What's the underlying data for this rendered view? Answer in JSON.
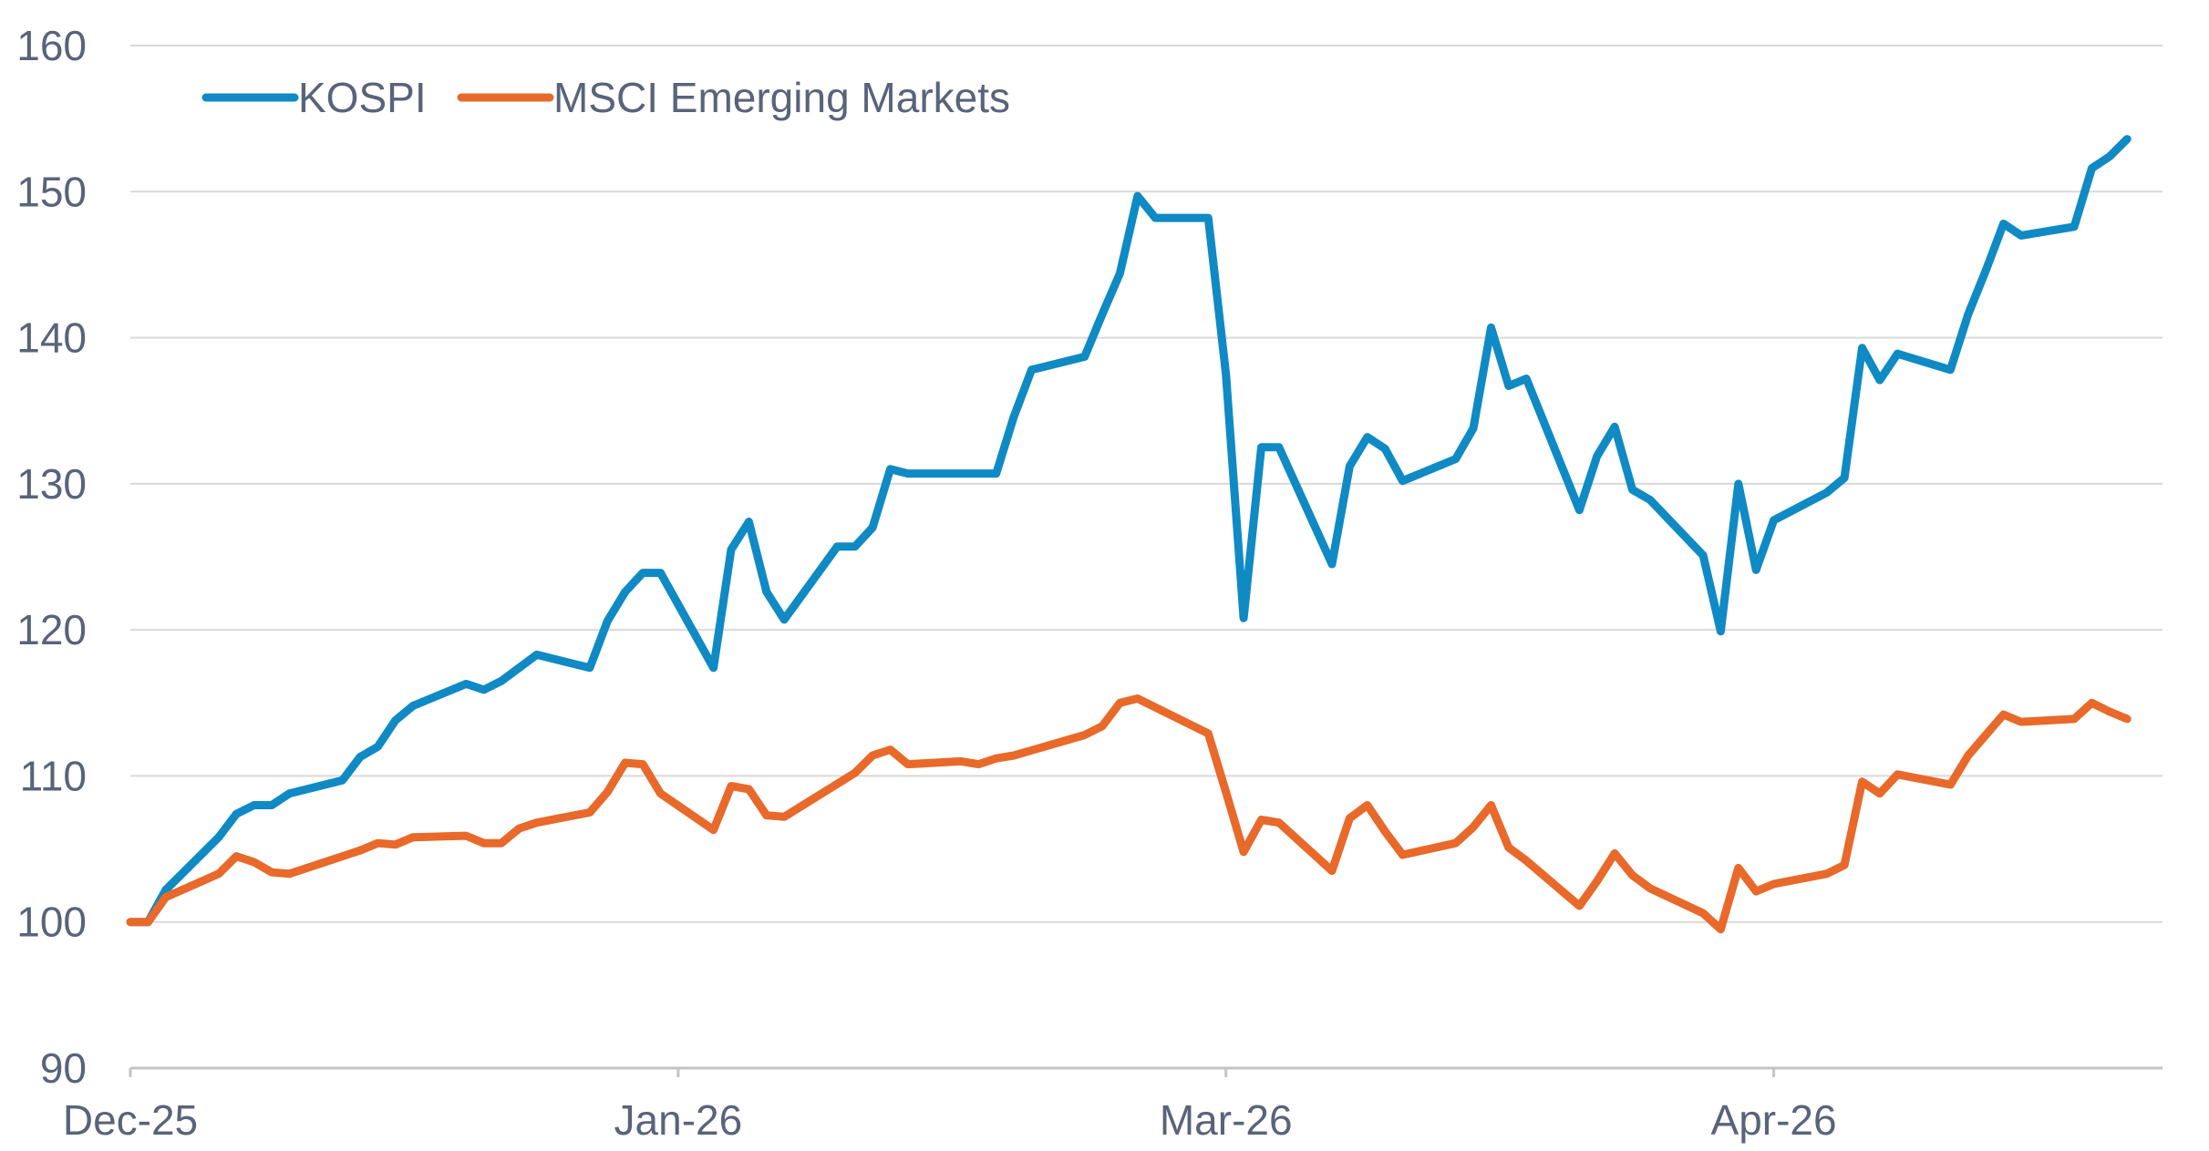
{
  "chart_data": {
    "type": "line",
    "title": "",
    "xlabel": "",
    "ylabel": "",
    "ylim": [
      90,
      160
    ],
    "yticks": [
      90,
      100,
      110,
      120,
      130,
      140,
      150,
      160
    ],
    "xticks": [
      "Dec-25",
      "Jan-26",
      "Mar-26",
      "Apr-26"
    ],
    "grid": true,
    "legend_position": "top-left",
    "colors": {
      "KOSPI": "#0f8ac4",
      "MSCI Emerging Markets": "#e8692a",
      "grid": "#d9d9d9",
      "axis": "#c4c4c4",
      "text": "#59637a"
    },
    "x_range": [
      0,
      115
    ],
    "xtick_positions": [
      0,
      31,
      62,
      93
    ],
    "series": [
      {
        "name": "KOSPI",
        "points": [
          [
            0,
            100
          ],
          [
            1,
            100
          ],
          [
            2,
            102.2
          ],
          [
            5,
            105.8
          ],
          [
            6,
            107.4
          ],
          [
            7,
            108
          ],
          [
            8,
            108
          ],
          [
            9,
            108.8
          ],
          [
            12,
            109.7
          ],
          [
            13,
            111.3
          ],
          [
            14,
            112
          ],
          [
            15,
            113.8
          ],
          [
            16,
            114.8
          ],
          [
            19,
            116.3
          ],
          [
            20,
            115.9
          ],
          [
            21,
            116.5
          ],
          [
            23,
            118.3
          ],
          [
            26,
            117.4
          ],
          [
            27,
            120.6
          ],
          [
            28,
            122.6
          ],
          [
            29,
            123.9
          ],
          [
            30,
            123.9
          ],
          [
            33,
            117.4
          ],
          [
            34,
            125.5
          ],
          [
            35,
            127.4
          ],
          [
            36,
            122.6
          ],
          [
            37,
            120.7
          ],
          [
            40,
            125.7
          ],
          [
            41,
            125.7
          ],
          [
            42,
            127
          ],
          [
            43,
            131
          ],
          [
            44,
            130.7
          ],
          [
            49,
            130.7
          ],
          [
            50,
            134.6
          ],
          [
            51,
            137.8
          ],
          [
            54,
            138.7
          ],
          [
            55,
            141.6
          ],
          [
            56,
            144.4
          ],
          [
            57,
            149.7
          ],
          [
            58,
            148.2
          ],
          [
            61,
            148.2
          ],
          [
            62,
            137.5
          ],
          [
            63,
            120.8
          ],
          [
            64,
            132.5
          ],
          [
            65,
            132.5
          ],
          [
            68,
            124.5
          ],
          [
            69,
            131.2
          ],
          [
            70,
            133.2
          ],
          [
            71,
            132.4
          ],
          [
            72,
            130.2
          ],
          [
            75,
            131.7
          ],
          [
            76,
            133.8
          ],
          [
            77,
            140.7
          ],
          [
            78,
            136.7
          ],
          [
            79,
            137.2
          ],
          [
            82,
            128.2
          ],
          [
            83,
            131.9
          ],
          [
            84,
            133.9
          ],
          [
            85,
            129.6
          ],
          [
            86,
            128.9
          ],
          [
            89,
            125.1
          ],
          [
            90,
            119.9
          ],
          [
            91,
            130
          ],
          [
            92,
            124.1
          ],
          [
            93,
            127.5
          ],
          [
            96,
            129.4
          ],
          [
            97,
            130.4
          ],
          [
            98,
            139.3
          ],
          [
            99,
            137.1
          ],
          [
            100,
            138.9
          ],
          [
            103,
            137.8
          ],
          [
            104,
            141.6
          ],
          [
            105,
            144.6
          ],
          [
            106,
            147.8
          ],
          [
            107,
            147
          ],
          [
            110,
            147.6
          ],
          [
            111,
            151.6
          ],
          [
            112,
            152.4
          ],
          [
            113,
            153.6
          ]
        ]
      },
      {
        "name": "MSCI Emerging Markets",
        "points": [
          [
            0,
            100
          ],
          [
            1,
            100
          ],
          [
            2,
            101.7
          ],
          [
            5,
            103.3
          ],
          [
            6,
            104.5
          ],
          [
            7,
            104.1
          ],
          [
            8,
            103.4
          ],
          [
            9,
            103.3
          ],
          [
            12,
            104.5
          ],
          [
            13,
            104.9
          ],
          [
            14,
            105.4
          ],
          [
            15,
            105.3
          ],
          [
            16,
            105.8
          ],
          [
            19,
            105.9
          ],
          [
            20,
            105.4
          ],
          [
            21,
            105.4
          ],
          [
            22,
            106.4
          ],
          [
            23,
            106.8
          ],
          [
            26,
            107.5
          ],
          [
            27,
            108.9
          ],
          [
            28,
            110.9
          ],
          [
            29,
            110.8
          ],
          [
            30,
            108.8
          ],
          [
            33,
            106.3
          ],
          [
            34,
            109.3
          ],
          [
            35,
            109.1
          ],
          [
            36,
            107.3
          ],
          [
            37,
            107.2
          ],
          [
            41,
            110.2
          ],
          [
            42,
            111.4
          ],
          [
            43,
            111.8
          ],
          [
            44,
            110.8
          ],
          [
            47,
            111
          ],
          [
            48,
            110.8
          ],
          [
            49,
            111.2
          ],
          [
            50,
            111.4
          ],
          [
            54,
            112.8
          ],
          [
            55,
            113.4
          ],
          [
            56,
            115
          ],
          [
            57,
            115.3
          ],
          [
            61,
            112.9
          ],
          [
            62,
            108.9
          ],
          [
            63,
            104.8
          ],
          [
            64,
            107
          ],
          [
            65,
            106.8
          ],
          [
            68,
            103.5
          ],
          [
            69,
            107.1
          ],
          [
            70,
            108
          ],
          [
            71,
            106.2
          ],
          [
            72,
            104.6
          ],
          [
            75,
            105.4
          ],
          [
            76,
            106.5
          ],
          [
            77,
            108
          ],
          [
            78,
            105.1
          ],
          [
            79,
            104.2
          ],
          [
            82,
            101.1
          ],
          [
            83,
            102.8
          ],
          [
            84,
            104.7
          ],
          [
            85,
            103.2
          ],
          [
            86,
            102.3
          ],
          [
            89,
            100.6
          ],
          [
            90,
            99.5
          ],
          [
            91,
            103.7
          ],
          [
            92,
            102.1
          ],
          [
            93,
            102.6
          ],
          [
            96,
            103.3
          ],
          [
            97,
            103.9
          ],
          [
            98,
            109.6
          ],
          [
            99,
            108.8
          ],
          [
            100,
            110.1
          ],
          [
            103,
            109.4
          ],
          [
            104,
            111.4
          ],
          [
            105,
            112.8
          ],
          [
            106,
            114.2
          ],
          [
            107,
            113.7
          ],
          [
            110,
            113.9
          ],
          [
            111,
            115
          ],
          [
            112,
            114.4
          ],
          [
            113,
            113.9
          ]
        ]
      }
    ]
  }
}
